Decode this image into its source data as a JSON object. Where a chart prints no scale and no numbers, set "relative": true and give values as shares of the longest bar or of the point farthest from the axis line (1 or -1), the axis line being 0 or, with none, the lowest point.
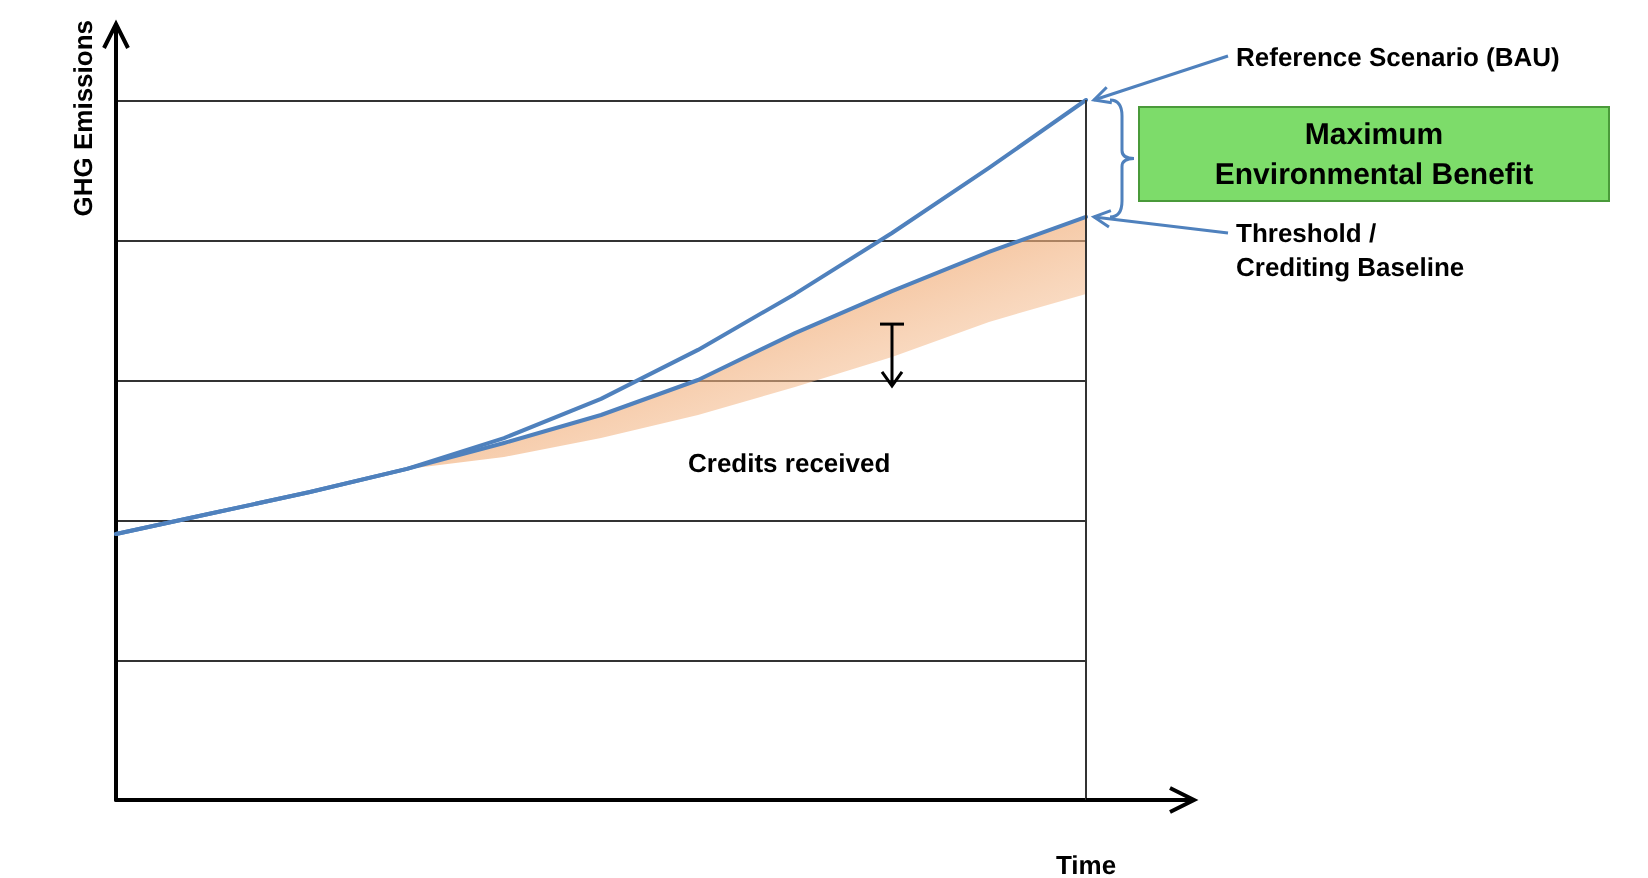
{
  "chart_data": {
    "type": "line",
    "relative": true,
    "xlabel": "Time",
    "ylabel": "GHG Emissions",
    "grid": "y",
    "marker": "none",
    "line_style": "solid",
    "categories": [
      null,
      null,
      null,
      null,
      null,
      null,
      null,
      null,
      null,
      null,
      null
    ],
    "series": [
      {
        "name": "Reference Scenario (BAU)",
        "color": "#4f81bd",
        "values": [
          0.38,
          0.41,
          0.44,
          0.473,
          0.517,
          0.573,
          0.643,
          0.723,
          0.81,
          0.903,
          1.0
        ]
      },
      {
        "name": "Threshold / Crediting Baseline",
        "color": "#4f81bd",
        "values": [
          0.38,
          0.41,
          0.44,
          0.473,
          0.51,
          0.55,
          0.6,
          0.667,
          0.727,
          0.783,
          0.833
        ],
        "lower": [
          null,
          null,
          null,
          0.473,
          0.49,
          0.517,
          0.55,
          0.59,
          0.633,
          0.683,
          0.723
        ],
        "upper": [
          null,
          null,
          null,
          0.473,
          0.51,
          0.55,
          0.6,
          0.667,
          0.727,
          0.783,
          0.833
        ]
      }
    ],
    "annotations": [
      "Maximum Environmental Benefit",
      "Credits received"
    ]
  }
}
